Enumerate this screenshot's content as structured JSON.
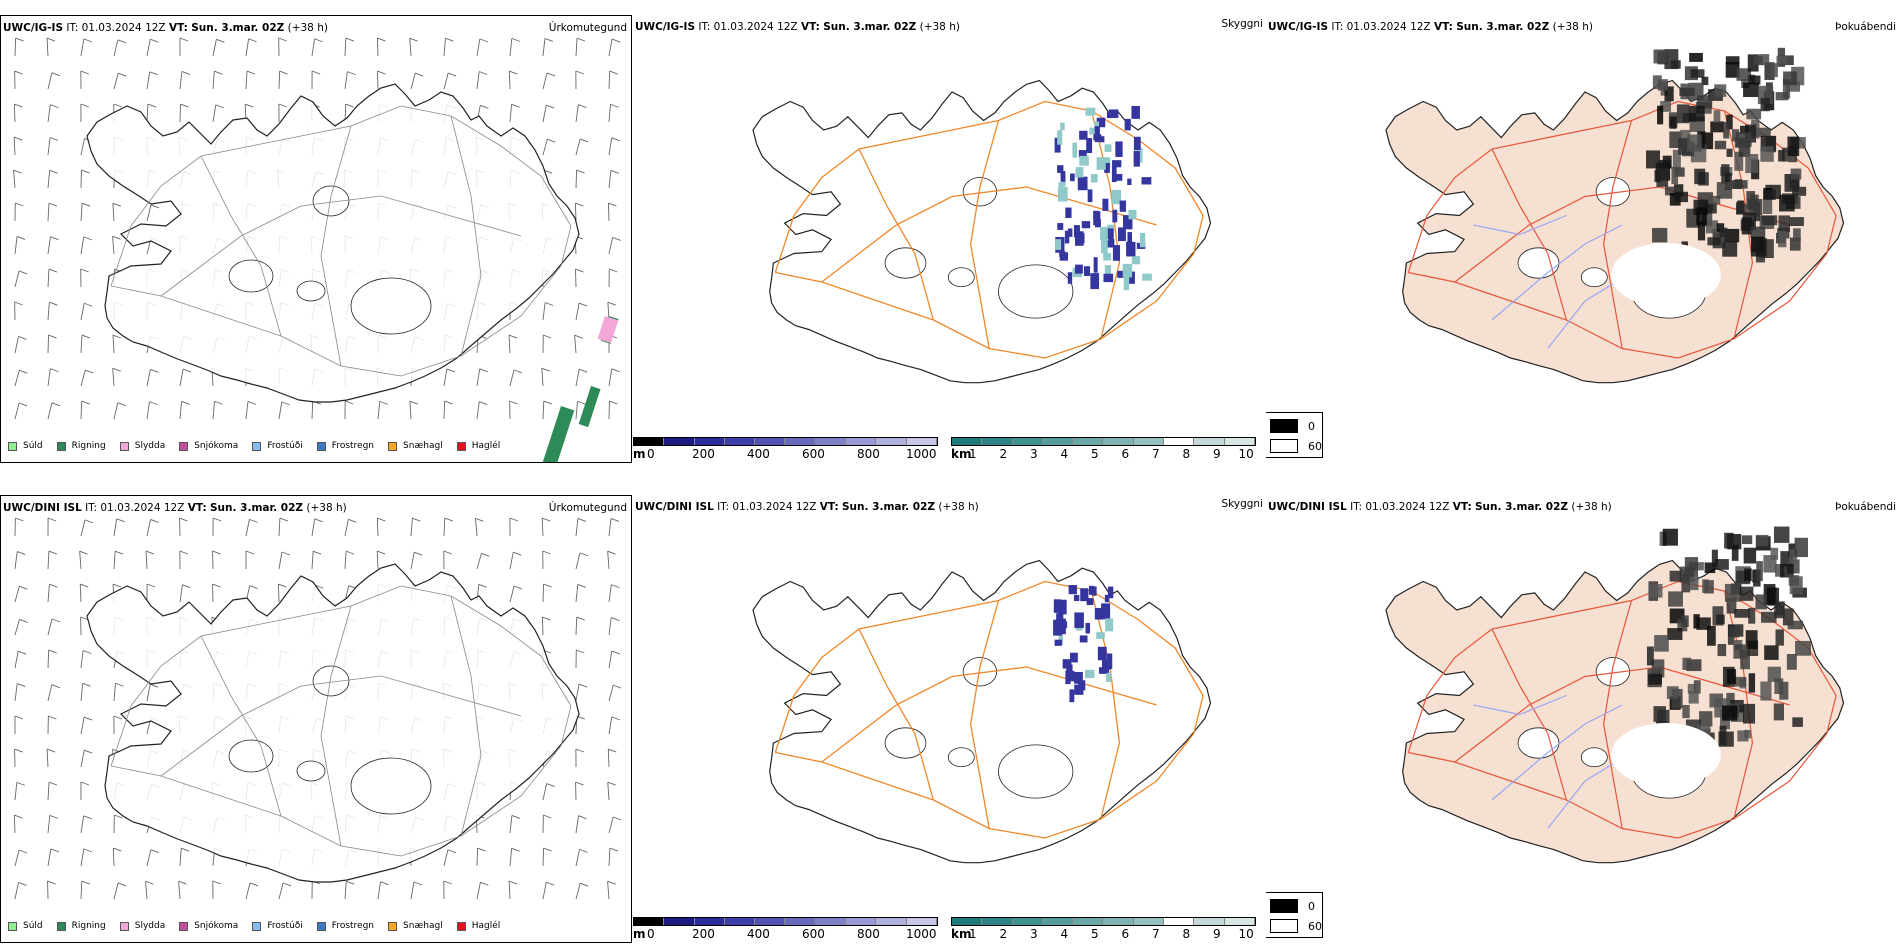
{
  "rows": [
    {
      "model": "UWC/IG-IS",
      "it_label": "IT:",
      "it_value": "01.03.2024 12Z",
      "vt_label": "VT:",
      "vt_value": "Sun. 3.mar. 02Z",
      "lead": "(+38 h)"
    },
    {
      "model": "UWC/DINI ISL",
      "it_label": "IT:",
      "it_value": "01.03.2024 12Z",
      "vt_label": "VT:",
      "vt_value": "Sun. 3.mar. 02Z",
      "lead": "(+38 h)"
    }
  ],
  "panel_titles": {
    "precip_type": "Úrkomutegund",
    "visibility": "Skyggni",
    "fog": "Þokuábendi"
  },
  "precip_legend": [
    {
      "label": "Súld",
      "color": "#90ee90"
    },
    {
      "label": "Rigning",
      "color": "#2e8b57"
    },
    {
      "label": "Slydda",
      "color": "#f4a6d7"
    },
    {
      "label": "Snjókoma",
      "color": "#c04fa0"
    },
    {
      "label": "Frostúði",
      "color": "#87bdf0"
    },
    {
      "label": "Frostregn",
      "color": "#3a7cc4"
    },
    {
      "label": "Snæhagl",
      "color": "#f5a623"
    },
    {
      "label": "Haglél",
      "color": "#e8101a"
    }
  ],
  "visibility_scale_m": {
    "unit": "m",
    "ticks": [
      "0",
      "200",
      "400",
      "600",
      "800",
      "1000"
    ],
    "colors": [
      "#000000",
      "#1a1a80",
      "#2b2b9a",
      "#3d3da8",
      "#5252b3",
      "#6a6abd",
      "#8080c8",
      "#9898d2",
      "#b0b0dc",
      "#c8c8e6"
    ]
  },
  "visibility_scale_km": {
    "unit": "km",
    "ticks": [
      "1",
      "2",
      "3",
      "4",
      "5",
      "6",
      "7",
      "8",
      "9",
      "10"
    ],
    "colors": [
      "#1f7a7a",
      "#2f8585",
      "#409090",
      "#559c9c",
      "#6aa8a8",
      "#80b4b4",
      "#96c0c0",
      "#acccc c",
      "#c2d8d8",
      "#d8e6e6"
    ]
  },
  "fog_scale": {
    "items": [
      {
        "label": "0",
        "color": "#000000"
      },
      {
        "label": "60",
        "color": "#ffffff"
      }
    ]
  }
}
